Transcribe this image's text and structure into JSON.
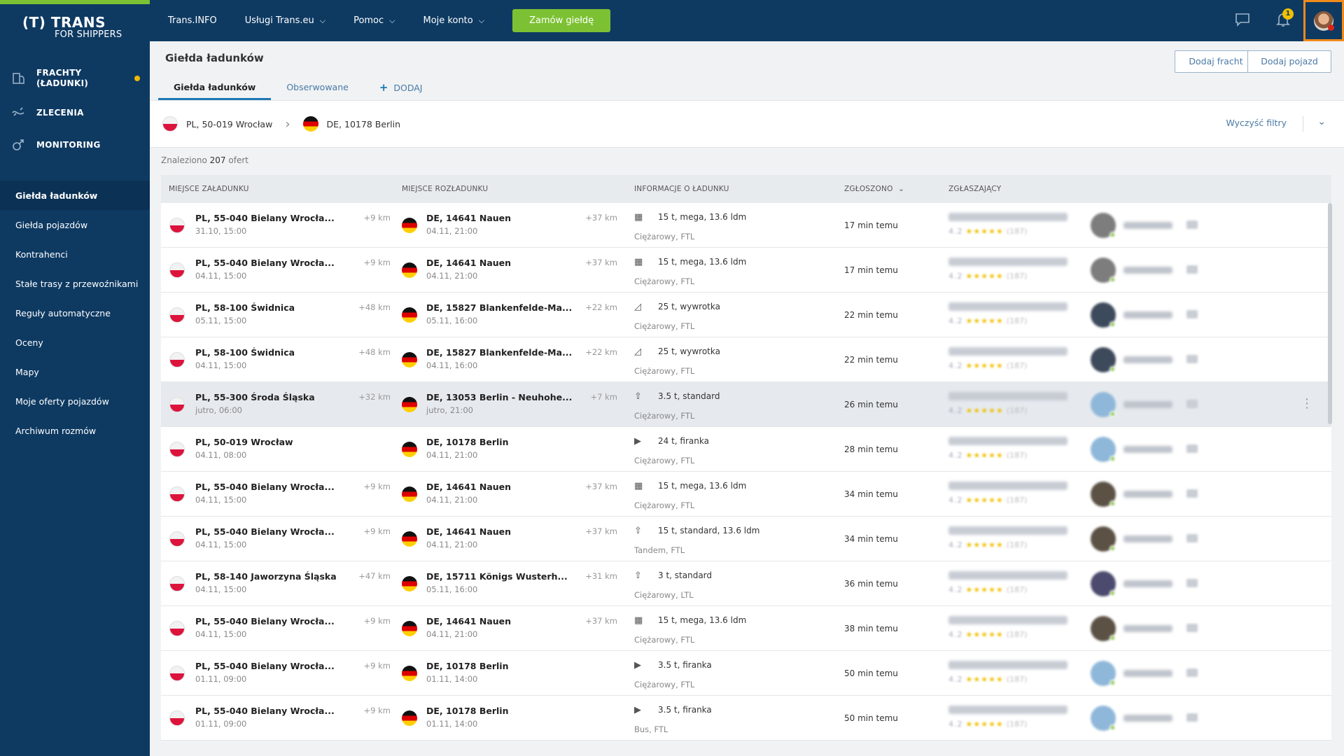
{
  "brand": {
    "logo_main": "(T) TRANS",
    "logo_sub": "FOR SHIPPERS"
  },
  "topnav": {
    "items": [
      {
        "label": "Trans.INFO",
        "dropdown": false
      },
      {
        "label": "Usługi Trans.eu",
        "dropdown": true
      },
      {
        "label": "Pomoc",
        "dropdown": true
      },
      {
        "label": "Moje konto",
        "dropdown": true
      }
    ],
    "order_button": "Zamów giełdę",
    "notifications_count": "1"
  },
  "sidebar": {
    "main": [
      {
        "label": "FRACHTY (ŁADUNKI)",
        "icon": "freight-icon",
        "dot": true
      },
      {
        "label": "ZLECENIA",
        "icon": "orders-icon",
        "dot": false
      },
      {
        "label": "MONITORING",
        "icon": "monitoring-icon",
        "dot": false
      }
    ],
    "sub": [
      {
        "label": "Giełda ładunków",
        "active": true
      },
      {
        "label": "Giełda pojazdów",
        "active": false
      },
      {
        "label": "Kontrahenci",
        "active": false
      },
      {
        "label": "Stałe trasy z przewoźnikami",
        "active": false
      },
      {
        "label": "Reguły automatyczne",
        "active": false
      },
      {
        "label": "Oceny",
        "active": false
      },
      {
        "label": "Mapy",
        "active": false
      },
      {
        "label": "Moje oferty pojazdów",
        "active": false
      },
      {
        "label": "Archiwum rozmów",
        "active": false
      }
    ]
  },
  "page": {
    "title": "Giełda ładunków",
    "tabs": [
      "Giełda ładunków",
      "Obserwowane",
      "DODAJ"
    ],
    "buttons": {
      "add_freight": "Dodaj fracht",
      "add_vehicle": "Dodaj pojazd"
    }
  },
  "filter": {
    "from": "PL, 50-019 Wrocław",
    "to": "DE, 10178 Berlin",
    "clear": "Wyczyść filtry"
  },
  "found": {
    "prefix": "Znaleziono",
    "count": "207",
    "suffix": "ofert"
  },
  "table": {
    "headers": [
      "MIEJSCE ZAŁADUNKU",
      "MIEJSCE ROZŁADUNKU",
      "INFORMACJE O ŁADUNKU",
      "ZGŁOSZONO",
      "ZGŁASZAJĄCY"
    ],
    "rows": [
      {
        "from": "PL, 55-040 Bielany Wrocła...",
        "from_date": "31.10, 15:00",
        "from_km": "+9 km",
        "to": "DE, 14641 Nauen",
        "to_date": "04.11, 21:00",
        "to_km": "+37 km",
        "load": "15 t, mega, 13.6 ldm",
        "vehicle": "Ciężarowy, FTL",
        "time": "17 min temu",
        "avatar": "#7d7d7d"
      },
      {
        "from": "PL, 55-040 Bielany Wrocła...",
        "from_date": "04.11, 15:00",
        "from_km": "+9 km",
        "to": "DE, 14641 Nauen",
        "to_date": "04.11, 21:00",
        "to_km": "+37 km",
        "load": "15 t, mega, 13.6 ldm",
        "vehicle": "Ciężarowy, FTL",
        "time": "17 min temu",
        "avatar": "#7d7d7d"
      },
      {
        "from": "PL, 58-100 Świdnica",
        "from_date": "05.11, 15:00",
        "from_km": "+48 km",
        "to": "DE, 15827 Blankenfelde-Ma...",
        "to_date": "05.11, 16:00",
        "to_km": "+22 km",
        "load": "25 t, wywrotka",
        "vehicle": "Ciężarowy, FTL",
        "time": "22 min temu",
        "avatar": "#3d4a5c"
      },
      {
        "from": "PL, 58-100 Świdnica",
        "from_date": "04.11, 15:00",
        "from_km": "+48 km",
        "to": "DE, 15827 Blankenfelde-Ma...",
        "to_date": "04.11, 16:00",
        "to_km": "+22 km",
        "load": "25 t, wywrotka",
        "vehicle": "Ciężarowy, FTL",
        "time": "22 min temu",
        "avatar": "#3d4a5c"
      },
      {
        "from": "PL, 55-300 Środa Śląska",
        "from_date": "jutro, 06:00",
        "from_km": "+32 km",
        "to": "DE, 13053 Berlin - Neuhohe...",
        "to_date": "jutro, 21:00",
        "to_km": "+7 km",
        "load": "3.5 t, standard",
        "vehicle": "Ciężarowy, FTL",
        "time": "26 min temu",
        "avatar": "#8fb7d9"
      },
      {
        "from": "PL, 50-019 Wrocław",
        "from_date": "04.11, 08:00",
        "from_km": "",
        "to": "DE, 10178 Berlin",
        "to_date": "04.11, 21:00",
        "to_km": "",
        "load": "24 t, firanka",
        "vehicle": "Ciężarowy, FTL",
        "time": "28 min temu",
        "avatar": "#8fb7d9"
      },
      {
        "from": "PL, 55-040 Bielany Wrocła...",
        "from_date": "04.11, 15:00",
        "from_km": "+9 km",
        "to": "DE, 14641 Nauen",
        "to_date": "04.11, 21:00",
        "to_km": "+37 km",
        "load": "15 t, mega, 13.6 ldm",
        "vehicle": "Ciężarowy, FTL",
        "time": "34 min temu",
        "avatar": "#5b5144"
      },
      {
        "from": "PL, 55-040 Bielany Wrocła...",
        "from_date": "04.11, 15:00",
        "from_km": "+9 km",
        "to": "DE, 14641 Nauen",
        "to_date": "04.11, 21:00",
        "to_km": "+37 km",
        "load": "15 t, standard, 13.6 ldm",
        "vehicle": "Tandem, FTL",
        "time": "34 min temu",
        "avatar": "#5b5144"
      },
      {
        "from": "PL, 58-140 Jaworzyna Śląska",
        "from_date": "04.11, 15:00",
        "from_km": "+47 km",
        "to": "DE, 15711 Königs Wusterh...",
        "to_date": "05.11, 16:00",
        "to_km": "+31 km",
        "load": "3 t, standard",
        "vehicle": "Ciężarowy, LTL",
        "time": "36 min temu",
        "avatar": "#4c4a6e"
      },
      {
        "from": "PL, 55-040 Bielany Wrocła...",
        "from_date": "04.11, 15:00",
        "from_km": "+9 km",
        "to": "DE, 14641 Nauen",
        "to_date": "04.11, 21:00",
        "to_km": "+37 km",
        "load": "15 t, mega, 13.6 ldm",
        "vehicle": "Ciężarowy, FTL",
        "time": "38 min temu",
        "avatar": "#5b5144"
      },
      {
        "from": "PL, 55-040 Bielany Wrocła...",
        "from_date": "01.11, 09:00",
        "from_km": "+9 km",
        "to": "DE, 10178 Berlin",
        "to_date": "01.11, 14:00",
        "to_km": "",
        "load": "3.5 t, firanka",
        "vehicle": "Ciężarowy, FTL",
        "time": "50 min temu",
        "avatar": "#8fb7d9"
      },
      {
        "from": "PL, 55-040 Bielany Wrocła...",
        "from_date": "01.11, 09:00",
        "from_km": "+9 km",
        "to": "DE, 10178 Berlin",
        "to_date": "01.11, 14:00",
        "to_km": "",
        "load": "3.5 t, firanka",
        "vehicle": "Bus, FTL",
        "time": "50 min temu",
        "avatar": "#8fb7d9"
      }
    ]
  },
  "colors": {
    "sidebar": "#0e3a62",
    "accent_green": "#7cc133",
    "link_blue": "#4a7aa6",
    "avatar_highlight": "#f08a1a"
  }
}
